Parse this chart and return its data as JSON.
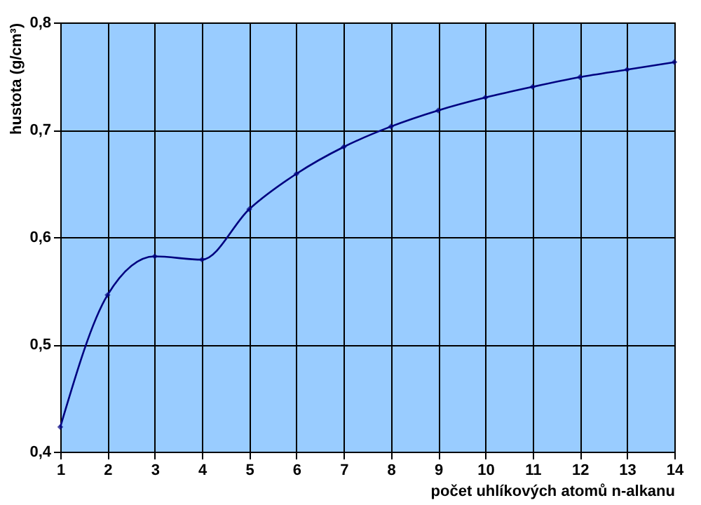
{
  "chart_data": {
    "type": "line",
    "xlabel": "počet uhlíkových atomů n-alkanu",
    "ylabel": "hustota (g/cm³)",
    "x": [
      1,
      2,
      3,
      4,
      5,
      6,
      7,
      8,
      9,
      10,
      11,
      12,
      13,
      14
    ],
    "series": [
      {
        "color": "#000080",
        "values": [
          0.423,
          0.546,
          0.582,
          0.579,
          0.626,
          0.659,
          0.684,
          0.703,
          0.718,
          0.73,
          0.74,
          0.749,
          0.756,
          0.763
        ]
      }
    ],
    "xlim": [
      1,
      14
    ],
    "xticks": [
      1,
      2,
      3,
      4,
      5,
      6,
      7,
      8,
      9,
      10,
      11,
      12,
      13,
      14
    ],
    "ylim": [
      0.4,
      0.8
    ],
    "yticks": [
      {
        "value": 0.4,
        "label": "0,4"
      },
      {
        "value": 0.5,
        "label": "0,5"
      },
      {
        "value": 0.6,
        "label": "0,6"
      },
      {
        "value": 0.7,
        "label": "0,7"
      },
      {
        "value": 0.8,
        "label": "0,8"
      }
    ],
    "grid": true,
    "marker": "diamond",
    "line_style": "solid"
  }
}
